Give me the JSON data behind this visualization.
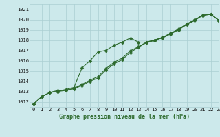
{
  "xlabel": "Graphe pression niveau de la mer (hPa)",
  "xlim": [
    -0.5,
    23
  ],
  "ylim": [
    1011.5,
    1021.5
  ],
  "yticks": [
    1012,
    1013,
    1014,
    1015,
    1016,
    1017,
    1018,
    1019,
    1020,
    1021
  ],
  "xticks": [
    0,
    1,
    2,
    3,
    4,
    5,
    6,
    7,
    8,
    9,
    10,
    11,
    12,
    13,
    14,
    15,
    16,
    17,
    18,
    19,
    20,
    21,
    22,
    23
  ],
  "background_color": "#cce9eb",
  "grid_color": "#aacfd2",
  "line_color": "#2d6a2d",
  "line1_x": [
    0,
    1,
    2,
    3,
    4,
    5,
    6,
    7,
    8,
    9,
    10,
    11,
    12,
    13,
    14,
    15,
    16,
    17,
    18,
    19,
    20,
    21,
    22,
    23
  ],
  "line1_y": [
    1011.8,
    1012.5,
    1012.9,
    1013.0,
    1013.2,
    1013.4,
    1015.3,
    1016.0,
    1016.85,
    1017.0,
    1017.5,
    1017.8,
    1018.2,
    1017.8,
    1017.8,
    1018.0,
    1018.2,
    1018.6,
    1019.0,
    1019.5,
    1019.9,
    1020.4,
    1020.5,
    1019.9
  ],
  "line2_x": [
    0,
    1,
    2,
    3,
    4,
    5,
    6,
    7,
    8,
    9,
    10,
    11,
    12,
    13,
    14,
    15,
    16,
    17,
    18,
    19,
    20,
    21,
    22,
    23
  ],
  "line2_y": [
    1011.8,
    1012.5,
    1012.9,
    1013.1,
    1013.15,
    1013.25,
    1013.6,
    1014.0,
    1014.3,
    1015.1,
    1015.7,
    1016.1,
    1016.8,
    1017.3,
    1017.75,
    1017.95,
    1018.25,
    1018.65,
    1019.05,
    1019.55,
    1019.95,
    1020.4,
    1020.5,
    1019.9
  ],
  "line3_x": [
    0,
    1,
    2,
    3,
    4,
    5,
    6,
    7,
    8,
    9,
    10,
    11,
    12,
    13,
    14,
    15,
    16,
    17,
    18,
    19,
    20,
    21,
    22,
    23
  ],
  "line3_y": [
    1011.8,
    1012.5,
    1012.9,
    1013.0,
    1013.1,
    1013.3,
    1013.7,
    1014.1,
    1014.45,
    1015.25,
    1015.85,
    1016.25,
    1016.95,
    1017.35,
    1017.8,
    1018.0,
    1018.27,
    1018.67,
    1019.07,
    1019.57,
    1019.97,
    1020.42,
    1020.52,
    1019.92
  ],
  "marker_size": 2.5,
  "line_width": 0.8,
  "tick_fontsize": 5.0,
  "label_fontsize": 6.0,
  "label_fontweight": "bold"
}
